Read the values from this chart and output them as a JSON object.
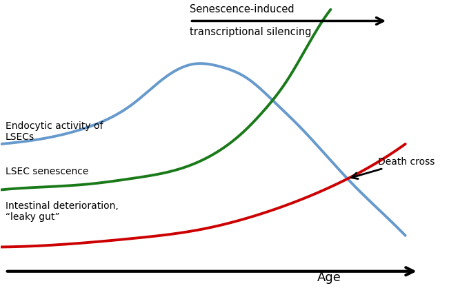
{
  "background_color": "#ffffff",
  "blue_color": "#6699cc",
  "green_color": "#1a7a1a",
  "red_color": "#cc0000",
  "black_color": "#000000",
  "senescence_arrow_text1": "Senescence-induced",
  "senescence_arrow_text2": "transcriptional silencing",
  "endocytic_label": "Endocytic activity of\nLSECs",
  "senescence_label": "LSEC senescence",
  "intestinal_label": "Intestinal deterioration,\n“leaky gut”",
  "death_cross_label": "Death cross",
  "age_label": "Age",
  "figsize": [
    6.51,
    4.18
  ],
  "dpi": 100,
  "blue_x": [
    0.0,
    0.1,
    0.2,
    0.3,
    0.38,
    0.44,
    0.5,
    0.56,
    0.62,
    0.68,
    0.74,
    0.8,
    0.86,
    0.92
  ],
  "blue_y": [
    0.5,
    0.52,
    0.56,
    0.64,
    0.74,
    0.78,
    0.77,
    0.73,
    0.65,
    0.56,
    0.46,
    0.36,
    0.27,
    0.18
  ],
  "green_x": [
    0.0,
    0.1,
    0.2,
    0.3,
    0.4,
    0.5,
    0.55,
    0.6,
    0.65,
    0.7,
    0.75
  ],
  "green_y": [
    0.34,
    0.35,
    0.36,
    0.38,
    0.41,
    0.48,
    0.54,
    0.62,
    0.72,
    0.85,
    0.97
  ],
  "red_x": [
    0.0,
    0.15,
    0.3,
    0.45,
    0.6,
    0.75,
    0.85,
    0.92
  ],
  "red_y": [
    0.14,
    0.15,
    0.17,
    0.2,
    0.26,
    0.35,
    0.43,
    0.5
  ]
}
